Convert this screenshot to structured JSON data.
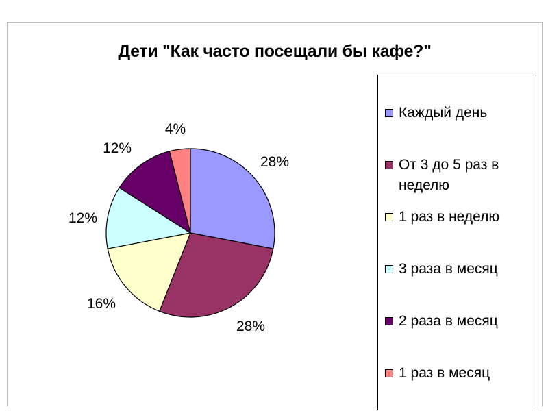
{
  "chart_data": {
    "type": "pie",
    "title": "Дети \"Как часто посещали бы кафе?\"",
    "categories": [
      "Каждый день",
      "От 3 до 5 раз в неделю",
      "1 раз в неделю",
      "3 раза в месяц",
      "2 раза в месяц",
      "1 раз в месяц"
    ],
    "values": [
      28,
      28,
      16,
      12,
      12,
      4
    ],
    "labels": [
      "28%",
      "28%",
      "16%",
      "12%",
      "12%",
      "4%"
    ],
    "colors": [
      "#9999ff",
      "#993366",
      "#ffffcc",
      "#ccffff",
      "#660066",
      "#ff8080"
    ],
    "legend_position": "right"
  }
}
